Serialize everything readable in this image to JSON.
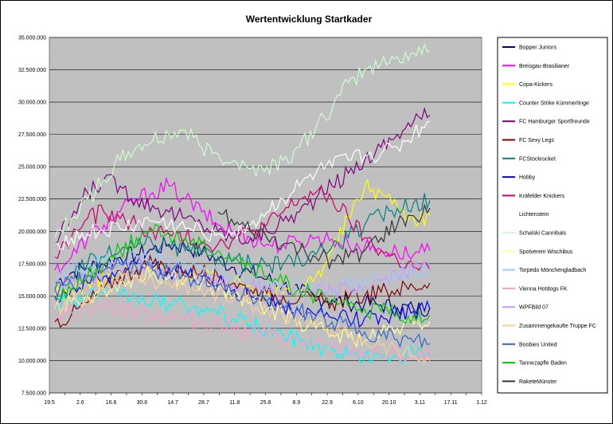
{
  "chart_data": {
    "type": "line",
    "title": "Wertentwicklung Startkader",
    "xlabel": "",
    "ylabel": "",
    "x_ticks": [
      "19.5",
      "26.5",
      "2.6",
      "9.6",
      "16.6",
      "23.6",
      "30.6",
      "7.7",
      "14.7",
      "21.7",
      "28.7",
      "4.8",
      "11.8",
      "18.8",
      "25.8",
      "1.9",
      "8.9",
      "15.9",
      "22.9",
      "29.9",
      "6.10",
      "13.10",
      "20.10",
      "27.10",
      "3.11",
      "10.11",
      "17.11",
      "24.11",
      "1.12"
    ],
    "x_tick_labels_shown": [
      "19.5",
      "2.6",
      "16.6",
      "30.6",
      "14.7",
      "28.7",
      "11.8",
      "25.8",
      "8.9",
      "22.9",
      "6.10",
      "20.10",
      "3.11",
      "17.11",
      "1.12"
    ],
    "y_ticks": [
      "7.500.000",
      "10.000.000",
      "12.500.000",
      "15.000.000",
      "17.500.000",
      "20.000.000",
      "22.500.000",
      "25.000.000",
      "27.500.000",
      "30.000.000",
      "32.500.000",
      "35.000.000"
    ],
    "ylim": [
      7500000,
      35000000
    ],
    "grid": true,
    "legend_position": "right",
    "x": [
      "24.5",
      "31.5",
      "7.6",
      "14.6",
      "21.6",
      "28.6",
      "5.7",
      "12.7",
      "19.7",
      "26.7",
      "2.8",
      "9.8",
      "16.8",
      "23.8",
      "30.8",
      "6.9",
      "13.9",
      "20.9",
      "27.9",
      "4.10",
      "11.10",
      "18.10",
      "25.10",
      "31.10"
    ],
    "series": [
      {
        "name": "Bopper Juniors",
        "color": "#000080",
        "values": [
          16000000,
          16800000,
          17200000,
          17500000,
          18000000,
          18200000,
          18600000,
          19000000,
          18800000,
          18400000,
          17800000,
          17200000,
          16800000,
          16300000,
          15800000,
          15300000,
          14900000,
          14700000,
          14500000,
          14400000,
          14300000,
          14100000,
          14000000,
          14100000
        ]
      },
      {
        "name": "Breisgau-Brasilianer",
        "color": "#ff00ff",
        "values": [
          17000000,
          18000000,
          19500000,
          20500000,
          21500000,
          22500000,
          23000000,
          23500000,
          22500000,
          21500000,
          20500000,
          20000000,
          19500000,
          19000000,
          19000000,
          19200000,
          19500000,
          19400000,
          19000000,
          18800000,
          18600000,
          18400000,
          18200000,
          18500000
        ]
      },
      {
        "name": "Copa-Kickers",
        "color": "#ffff00",
        "values": [
          15000000,
          15500000,
          16000000,
          16500000,
          16800000,
          17000000,
          17200000,
          17000000,
          16800000,
          16500000,
          16200000,
          16000000,
          15800000,
          15500000,
          15200000,
          15500000,
          16500000,
          18500000,
          21000000,
          23500000,
          23000000,
          22000000,
          21000000,
          21200000
        ]
      },
      {
        "name": "Counter Strike Kümmerlinge",
        "color": "#00ffff",
        "values": [
          14500000,
          14800000,
          15000000,
          15200000,
          15000000,
          14800000,
          14600000,
          14400000,
          14200000,
          14000000,
          13600000,
          13200000,
          12800000,
          12400000,
          12000000,
          11600000,
          11200000,
          10800000,
          10500000,
          10300000,
          10200000,
          10400000,
          10500000,
          10400000
        ]
      },
      {
        "name": "FC Hamburger Sportfreunde",
        "color": "#800080",
        "values": [
          19000000,
          21000000,
          23000000,
          24000000,
          23500000,
          22500000,
          22000000,
          21500000,
          21000000,
          20500000,
          20000000,
          19500000,
          19500000,
          20000000,
          20800000,
          21500000,
          22500000,
          23500000,
          24500000,
          25500000,
          26500000,
          27500000,
          28500000,
          29000000
        ]
      },
      {
        "name": "FC Sexy Legs",
        "color": "#800000",
        "values": [
          13000000,
          13500000,
          14500000,
          15500000,
          16500000,
          17000000,
          17500000,
          17200000,
          17000000,
          16800000,
          16500000,
          16000000,
          15500000,
          15200000,
          15000000,
          14800000,
          14600000,
          14500000,
          14800000,
          15000000,
          15300000,
          15500000,
          15700000,
          16000000
        ]
      },
      {
        "name": "FCStockrocket",
        "color": "#008080",
        "values": [
          15500000,
          16500000,
          17500000,
          18000000,
          18500000,
          18800000,
          19000000,
          18800000,
          18500000,
          18200000,
          18000000,
          17800000,
          17500000,
          17300000,
          17500000,
          17800000,
          18200000,
          18800000,
          19500000,
          20500000,
          21200000,
          21800000,
          22200000,
          22400000
        ]
      },
      {
        "name": "Hobby",
        "color": "#0000ff",
        "values": [
          15000000,
          15500000,
          16000000,
          16500000,
          17000000,
          17500000,
          17200000,
          17000000,
          16800000,
          16500000,
          16000000,
          15500000,
          15000000,
          14600000,
          14200000,
          13800000,
          13500000,
          13300000,
          13200000,
          13300000,
          13500000,
          13700000,
          13800000,
          14000000
        ]
      },
      {
        "name": "Kräfelder Knickers",
        "color": "#cc0066",
        "values": [
          18000000,
          19500000,
          21000000,
          21500000,
          21000000,
          20500000,
          20000000,
          19800000,
          19500000,
          19200000,
          19000000,
          19500000,
          20000000,
          20500000,
          21500000,
          22500000,
          23000000,
          22500000,
          21000000,
          19500000,
          18500000,
          17800000,
          17200000,
          17000000
        ]
      },
      {
        "name": "Lichtenstein",
        "color": "#ffffff",
        "values": [
          19000000,
          19500000,
          19800000,
          20000000,
          20200000,
          20500000,
          20800000,
          20500000,
          20200000,
          20000000,
          19800000,
          20000000,
          20500000,
          21500000,
          22500000,
          23500000,
          24500000,
          25000000,
          25500000,
          25800000,
          26000000,
          26500000,
          27500000,
          28500000
        ]
      },
      {
        "name": "Schalski Cannibals",
        "color": "#ccffcc",
        "values": [
          19500000,
          21000000,
          22500000,
          24000000,
          25500000,
          26500000,
          27000000,
          27500000,
          27800000,
          26500000,
          26000000,
          25500000,
          24800000,
          25000000,
          25500000,
          26500000,
          28000000,
          29500000,
          31500000,
          32500000,
          33000000,
          33500000,
          33800000,
          34000000
        ]
      },
      {
        "name": "Spotverein Wischibus",
        "color": "#ffff99",
        "values": [
          14000000,
          14500000,
          15000000,
          15500000,
          16000000,
          16500000,
          16800000,
          16500000,
          16200000,
          16000000,
          15500000,
          15000000,
          14500000,
          14000000,
          13500000,
          13000000,
          12500000,
          12000000,
          11800000,
          11600000,
          12000000,
          12500000,
          12800000,
          13000000
        ]
      },
      {
        "name": "Torpedo Mönchengladbach",
        "color": "#99ccff",
        "values": [
          16500000,
          17000000,
          17200000,
          17500000,
          17800000,
          18000000,
          17800000,
          17500000,
          17200000,
          17000000,
          16800000,
          16500000,
          16200000,
          16000000,
          15800000,
          15600000,
          15400000,
          15500000,
          15800000,
          16200000,
          16500000,
          16800000,
          17000000,
          17200000
        ]
      },
      {
        "name": "Vienna Hotdogs FK",
        "color": "#ff99cc",
        "values": [
          13500000,
          13800000,
          14000000,
          14200000,
          14000000,
          13800000,
          13600000,
          13400000,
          13200000,
          13000000,
          12800000,
          12500000,
          12200000,
          12000000,
          11800000,
          11500000,
          11200000,
          11000000,
          10800000,
          10600000,
          10500000,
          10400000,
          10300000,
          10200000
        ]
      },
      {
        "name": "WPFBild 07",
        "color": "#cc99ff",
        "values": [
          16000000,
          16200000,
          16500000,
          16800000,
          17000000,
          17200000,
          17000000,
          16800000,
          16500000,
          16200000,
          16000000,
          15800000,
          15600000,
          15500000,
          15400000,
          15300000,
          15300000,
          15400000,
          15600000,
          15800000,
          16200000,
          16600000,
          17000000,
          17300000
        ]
      },
      {
        "name": "Zusammengekaufte Truppe FC",
        "color": "#ffcc99",
        "values": [
          14000000,
          14500000,
          15000000,
          15500000,
          16000000,
          16500000,
          16200000,
          16000000,
          15800000,
          15500000,
          15200000,
          14800000,
          14400000,
          14000000,
          13600000,
          13200000,
          12800000,
          12400000,
          12000000,
          11600000,
          11200000,
          10800000,
          10400000,
          10000000
        ]
      },
      {
        "name": "Boobies United",
        "color": "#3366cc",
        "values": [
          15500000,
          16000000,
          16500000,
          17000000,
          17500000,
          17200000,
          17000000,
          16800000,
          16500000,
          16200000,
          15800000,
          15400000,
          15000000,
          14600000,
          14200000,
          13800000,
          13400000,
          13000000,
          12600000,
          12200000,
          11900000,
          11600000,
          11400000,
          11300000
        ]
      },
      {
        "name": "Tannezapfle Baden",
        "color": "#00cc00",
        "values": [
          15000000,
          15500000,
          16500000,
          17500000,
          18500000,
          19500000,
          20000000,
          19800000,
          19500000,
          19000000,
          18500000,
          18000000,
          17200000,
          16500000,
          16000000,
          15500000,
          15000000,
          14500000,
          14200000,
          14000000,
          13800000,
          13600000,
          13500000,
          13500000
        ]
      },
      {
        "name": "RaketeMünster",
        "color": "#333333",
        "values": [
          null,
          null,
          null,
          null,
          null,
          null,
          null,
          null,
          null,
          null,
          21500000,
          20500000,
          20000000,
          19500000,
          19000000,
          18500000,
          18000000,
          17800000,
          18000000,
          18500000,
          19500000,
          20500000,
          21200000,
          21800000
        ]
      }
    ]
  }
}
